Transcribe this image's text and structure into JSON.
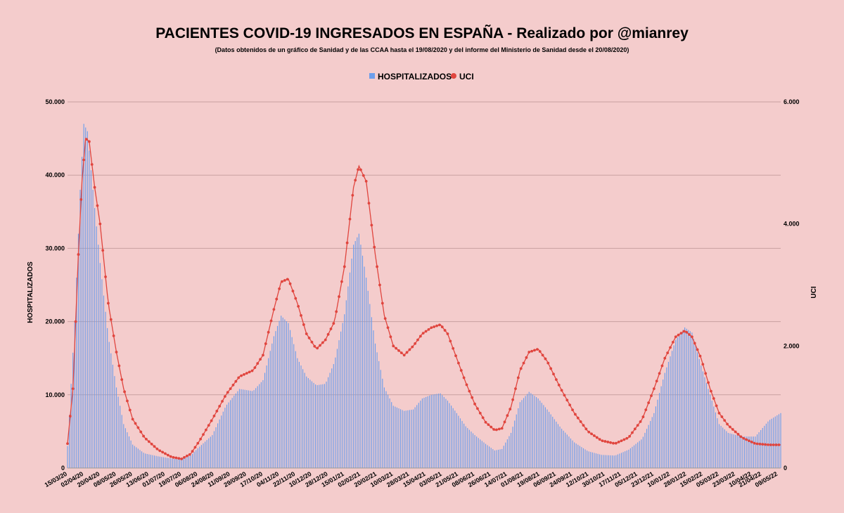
{
  "chart_data": {
    "type": "bar+line",
    "title": "PACIENTES COVID-19 INGRESADOS EN ESPAÑA - Realizado por @mianrey",
    "subtitle": "(Datos obtenidos de un gráfico de Sanidad y de las CCAA hasta el 19/08/2020 y del informe del Ministerio de Sanidad desde el 20/08/2020)",
    "y_left_label": "HOSPITALIZADOS",
    "y_right_label": "UCI",
    "y_left_ticks": [
      "0",
      "10.000",
      "20.000",
      "30.000",
      "40.000",
      "50.000"
    ],
    "y_right_ticks": [
      "0",
      "2.000",
      "4.000",
      "6.000"
    ],
    "ylim_left": [
      0,
      50000
    ],
    "ylim_right": [
      0,
      6000
    ],
    "legend_position": "top-center",
    "x_tick_labels": [
      "15/03/20",
      "02/04/20",
      "20/04/20",
      "08/05/20",
      "26/05/20",
      "13/06/20",
      "01/07/20",
      "19/07/20",
      "06/08/20",
      "24/08/20",
      "11/09/20",
      "29/09/20",
      "17/10/20",
      "04/11/20",
      "22/11/20",
      "10/12/20",
      "28/12/20",
      "15/01/21",
      "02/02/21",
      "20/02/21",
      "10/03/21",
      "28/03/21",
      "15/04/21",
      "03/05/21",
      "21/05/21",
      "08/06/21",
      "26/06/21",
      "14/07/21",
      "01/08/21",
      "19/08/21",
      "06/09/21",
      "24/09/21",
      "12/10/21",
      "30/10/21",
      "17/11/21",
      "05/12/21",
      "23/12/21",
      "10/01/22",
      "28/01/22",
      "15/02/22",
      "05/03/22",
      "23/03/22",
      "10/04/22",
      "21/04/22",
      "09/05/22"
    ],
    "x_days": [
      0,
      18,
      36,
      54,
      72,
      90,
      108,
      126,
      144,
      162,
      180,
      198,
      216,
      234,
      252,
      270,
      288,
      306,
      324,
      342,
      360,
      378,
      396,
      414,
      432,
      450,
      468,
      486,
      504,
      522,
      540,
      558,
      576,
      594,
      612,
      630,
      648,
      666,
      684,
      702,
      720,
      738,
      756,
      767,
      785
    ],
    "x_range_days": [
      0,
      788
    ],
    "grid": true,
    "series": [
      {
        "name": "HOSPITALIZADOS",
        "kind": "bar",
        "color": "#6d9eeb",
        "points": [
          [
            0,
            3000
          ],
          [
            8,
            20000
          ],
          [
            14,
            38000
          ],
          [
            18,
            47000
          ],
          [
            22,
            46000
          ],
          [
            28,
            38000
          ],
          [
            36,
            28000
          ],
          [
            45,
            18000
          ],
          [
            54,
            11000
          ],
          [
            62,
            6000
          ],
          [
            72,
            3200
          ],
          [
            85,
            2000
          ],
          [
            100,
            1600
          ],
          [
            115,
            1300
          ],
          [
            126,
            1200
          ],
          [
            136,
            1700
          ],
          [
            144,
            2700
          ],
          [
            160,
            4500
          ],
          [
            175,
            8500
          ],
          [
            190,
            10800
          ],
          [
            205,
            10500
          ],
          [
            216,
            12000
          ],
          [
            228,
            18000
          ],
          [
            236,
            20800
          ],
          [
            244,
            19800
          ],
          [
            254,
            15000
          ],
          [
            264,
            12500
          ],
          [
            275,
            11300
          ],
          [
            285,
            11500
          ],
          [
            295,
            14500
          ],
          [
            306,
            21000
          ],
          [
            316,
            30500
          ],
          [
            322,
            32000
          ],
          [
            330,
            26000
          ],
          [
            340,
            17000
          ],
          [
            350,
            11000
          ],
          [
            360,
            8500
          ],
          [
            372,
            7800
          ],
          [
            382,
            8000
          ],
          [
            392,
            9500
          ],
          [
            402,
            10000
          ],
          [
            412,
            10200
          ],
          [
            420,
            9200
          ],
          [
            430,
            7500
          ],
          [
            440,
            5700
          ],
          [
            450,
            4500
          ],
          [
            462,
            3300
          ],
          [
            472,
            2400
          ],
          [
            480,
            2600
          ],
          [
            490,
            4800
          ],
          [
            500,
            9000
          ],
          [
            510,
            10400
          ],
          [
            520,
            9500
          ],
          [
            530,
            8000
          ],
          [
            545,
            5500
          ],
          [
            560,
            3500
          ],
          [
            575,
            2300
          ],
          [
            590,
            1800
          ],
          [
            605,
            1700
          ],
          [
            620,
            2500
          ],
          [
            635,
            4000
          ],
          [
            648,
            7500
          ],
          [
            660,
            13000
          ],
          [
            672,
            17500
          ],
          [
            682,
            19200
          ],
          [
            690,
            18500
          ],
          [
            700,
            14000
          ],
          [
            710,
            10000
          ],
          [
            720,
            6000
          ],
          [
            730,
            4800
          ],
          [
            745,
            4300
          ],
          [
            760,
            4300
          ],
          [
            775,
            6500
          ],
          [
            788,
            7500
          ]
        ]
      },
      {
        "name": "UCI",
        "kind": "line",
        "color": "#e0453e",
        "points": [
          [
            0,
            400
          ],
          [
            6,
            1300
          ],
          [
            12,
            3500
          ],
          [
            16,
            4700
          ],
          [
            20,
            5400
          ],
          [
            24,
            5350
          ],
          [
            30,
            4600
          ],
          [
            36,
            4000
          ],
          [
            45,
            2700
          ],
          [
            54,
            1900
          ],
          [
            62,
            1300
          ],
          [
            72,
            800
          ],
          [
            85,
            500
          ],
          [
            100,
            300
          ],
          [
            115,
            180
          ],
          [
            126,
            150
          ],
          [
            136,
            230
          ],
          [
            146,
            450
          ],
          [
            160,
            800
          ],
          [
            175,
            1200
          ],
          [
            190,
            1500
          ],
          [
            205,
            1600
          ],
          [
            216,
            1850
          ],
          [
            228,
            2600
          ],
          [
            236,
            3050
          ],
          [
            244,
            3100
          ],
          [
            254,
            2700
          ],
          [
            264,
            2200
          ],
          [
            275,
            1950
          ],
          [
            285,
            2100
          ],
          [
            295,
            2400
          ],
          [
            306,
            3300
          ],
          [
            316,
            4600
          ],
          [
            322,
            4950
          ],
          [
            330,
            4700
          ],
          [
            340,
            3500
          ],
          [
            350,
            2500
          ],
          [
            360,
            2000
          ],
          [
            372,
            1850
          ],
          [
            382,
            2000
          ],
          [
            392,
            2200
          ],
          [
            402,
            2300
          ],
          [
            412,
            2350
          ],
          [
            420,
            2200
          ],
          [
            430,
            1800
          ],
          [
            440,
            1400
          ],
          [
            450,
            1050
          ],
          [
            462,
            750
          ],
          [
            472,
            620
          ],
          [
            480,
            650
          ],
          [
            490,
            1000
          ],
          [
            500,
            1600
          ],
          [
            510,
            1900
          ],
          [
            520,
            1950
          ],
          [
            530,
            1750
          ],
          [
            545,
            1300
          ],
          [
            560,
            900
          ],
          [
            575,
            600
          ],
          [
            590,
            450
          ],
          [
            605,
            400
          ],
          [
            620,
            500
          ],
          [
            635,
            800
          ],
          [
            648,
            1300
          ],
          [
            660,
            1800
          ],
          [
            672,
            2150
          ],
          [
            682,
            2250
          ],
          [
            690,
            2150
          ],
          [
            700,
            1800
          ],
          [
            710,
            1300
          ],
          [
            720,
            900
          ],
          [
            730,
            700
          ],
          [
            745,
            500
          ],
          [
            760,
            400
          ],
          [
            775,
            380
          ],
          [
            788,
            380
          ]
        ]
      }
    ]
  }
}
